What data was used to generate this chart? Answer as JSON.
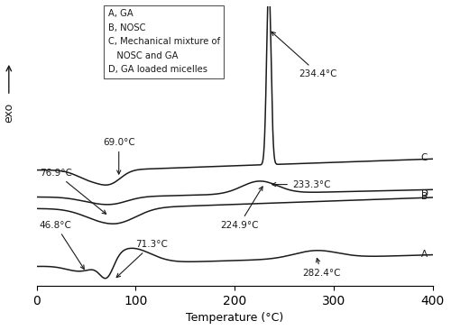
{
  "xlabel": "Temperature (°C)",
  "ylabel": "exo",
  "xlim": [
    0,
    400
  ],
  "ylim": [
    -2.5,
    12.0
  ],
  "xticks": [
    0,
    100,
    200,
    300,
    400
  ],
  "background_color": "#ffffff",
  "line_color": "#1a1a1a",
  "figsize": [
    5.0,
    3.66
  ],
  "dpi": 100
}
